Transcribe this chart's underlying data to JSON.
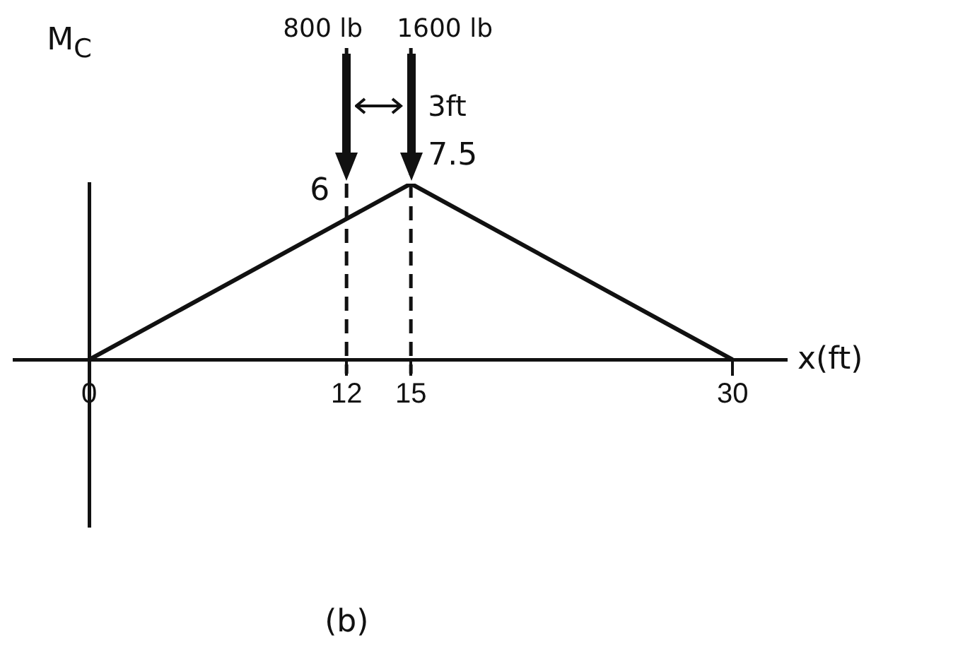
{
  "chart_data": {
    "type": "line",
    "xlabel": "x(ft)",
    "ylabel": "M$_{C}$",
    "x": [
      0,
      12,
      15,
      30
    ],
    "series": [
      {
        "color": "#111111",
        "values": [
          0,
          6,
          7.5,
          0
        ],
        "value_labels": [
          null,
          "6",
          "7.5",
          null
        ]
      }
    ],
    "xlim": [
      -3.5,
      32.5
    ],
    "xticks": [
      0,
      12,
      15,
      30
    ],
    "tick_labels": "x",
    "grid": false,
    "legend": false,
    "marker": "none",
    "line_style": "solid",
    "ref_lines": [
      {
        "axis": "x",
        "value": 12,
        "label": "800 lb",
        "line_style": "dashed",
        "color": "#111111"
      },
      {
        "axis": "x",
        "value": 15,
        "label": "1600 lb",
        "line_style": "dashed",
        "color": "#111111"
      }
    ],
    "annotations": [
      "3ft",
      "(b)"
    ]
  }
}
